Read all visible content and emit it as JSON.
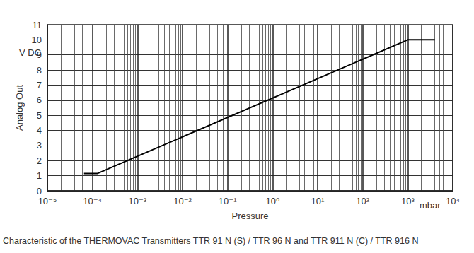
{
  "chart_data": {
    "type": "line",
    "xlabel": "Pressure",
    "x_unit": "mbar",
    "ylabel": "Analog Out",
    "y_unit": "V DC",
    "caption": "Characteristic of the THERMOVAC Transmitters TTR 91 N (S) / TTR 96 N and TTR 911 N (C) / TTR 916 N",
    "log": "x",
    "grid": true,
    "color": "#000000",
    "x": [
      6.5e-05,
      0.00013,
      1000,
      4000
    ],
    "values": [
      1.15,
      1.15,
      10,
      10
    ],
    "xlim": [
      1e-05,
      10000
    ],
    "xticks": [
      {
        "value": 1e-05,
        "label": "10⁻⁵"
      },
      {
        "value": 0.0001,
        "label": "10⁻⁴"
      },
      {
        "value": 0.001,
        "label": "10⁻³"
      },
      {
        "value": 0.01,
        "label": "10⁻²"
      },
      {
        "value": 0.1,
        "label": "10⁻¹"
      },
      {
        "value": 1,
        "label": "10⁰"
      },
      {
        "value": 10,
        "label": "10¹"
      },
      {
        "value": 100,
        "label": "10²"
      },
      {
        "value": 1000,
        "label": "10³"
      },
      {
        "value": 10000,
        "label": "10⁴"
      }
    ],
    "ylim": [
      0,
      11
    ],
    "yticks": [
      0,
      1,
      2,
      3,
      4,
      5,
      6,
      7,
      8,
      9,
      10,
      11
    ]
  }
}
